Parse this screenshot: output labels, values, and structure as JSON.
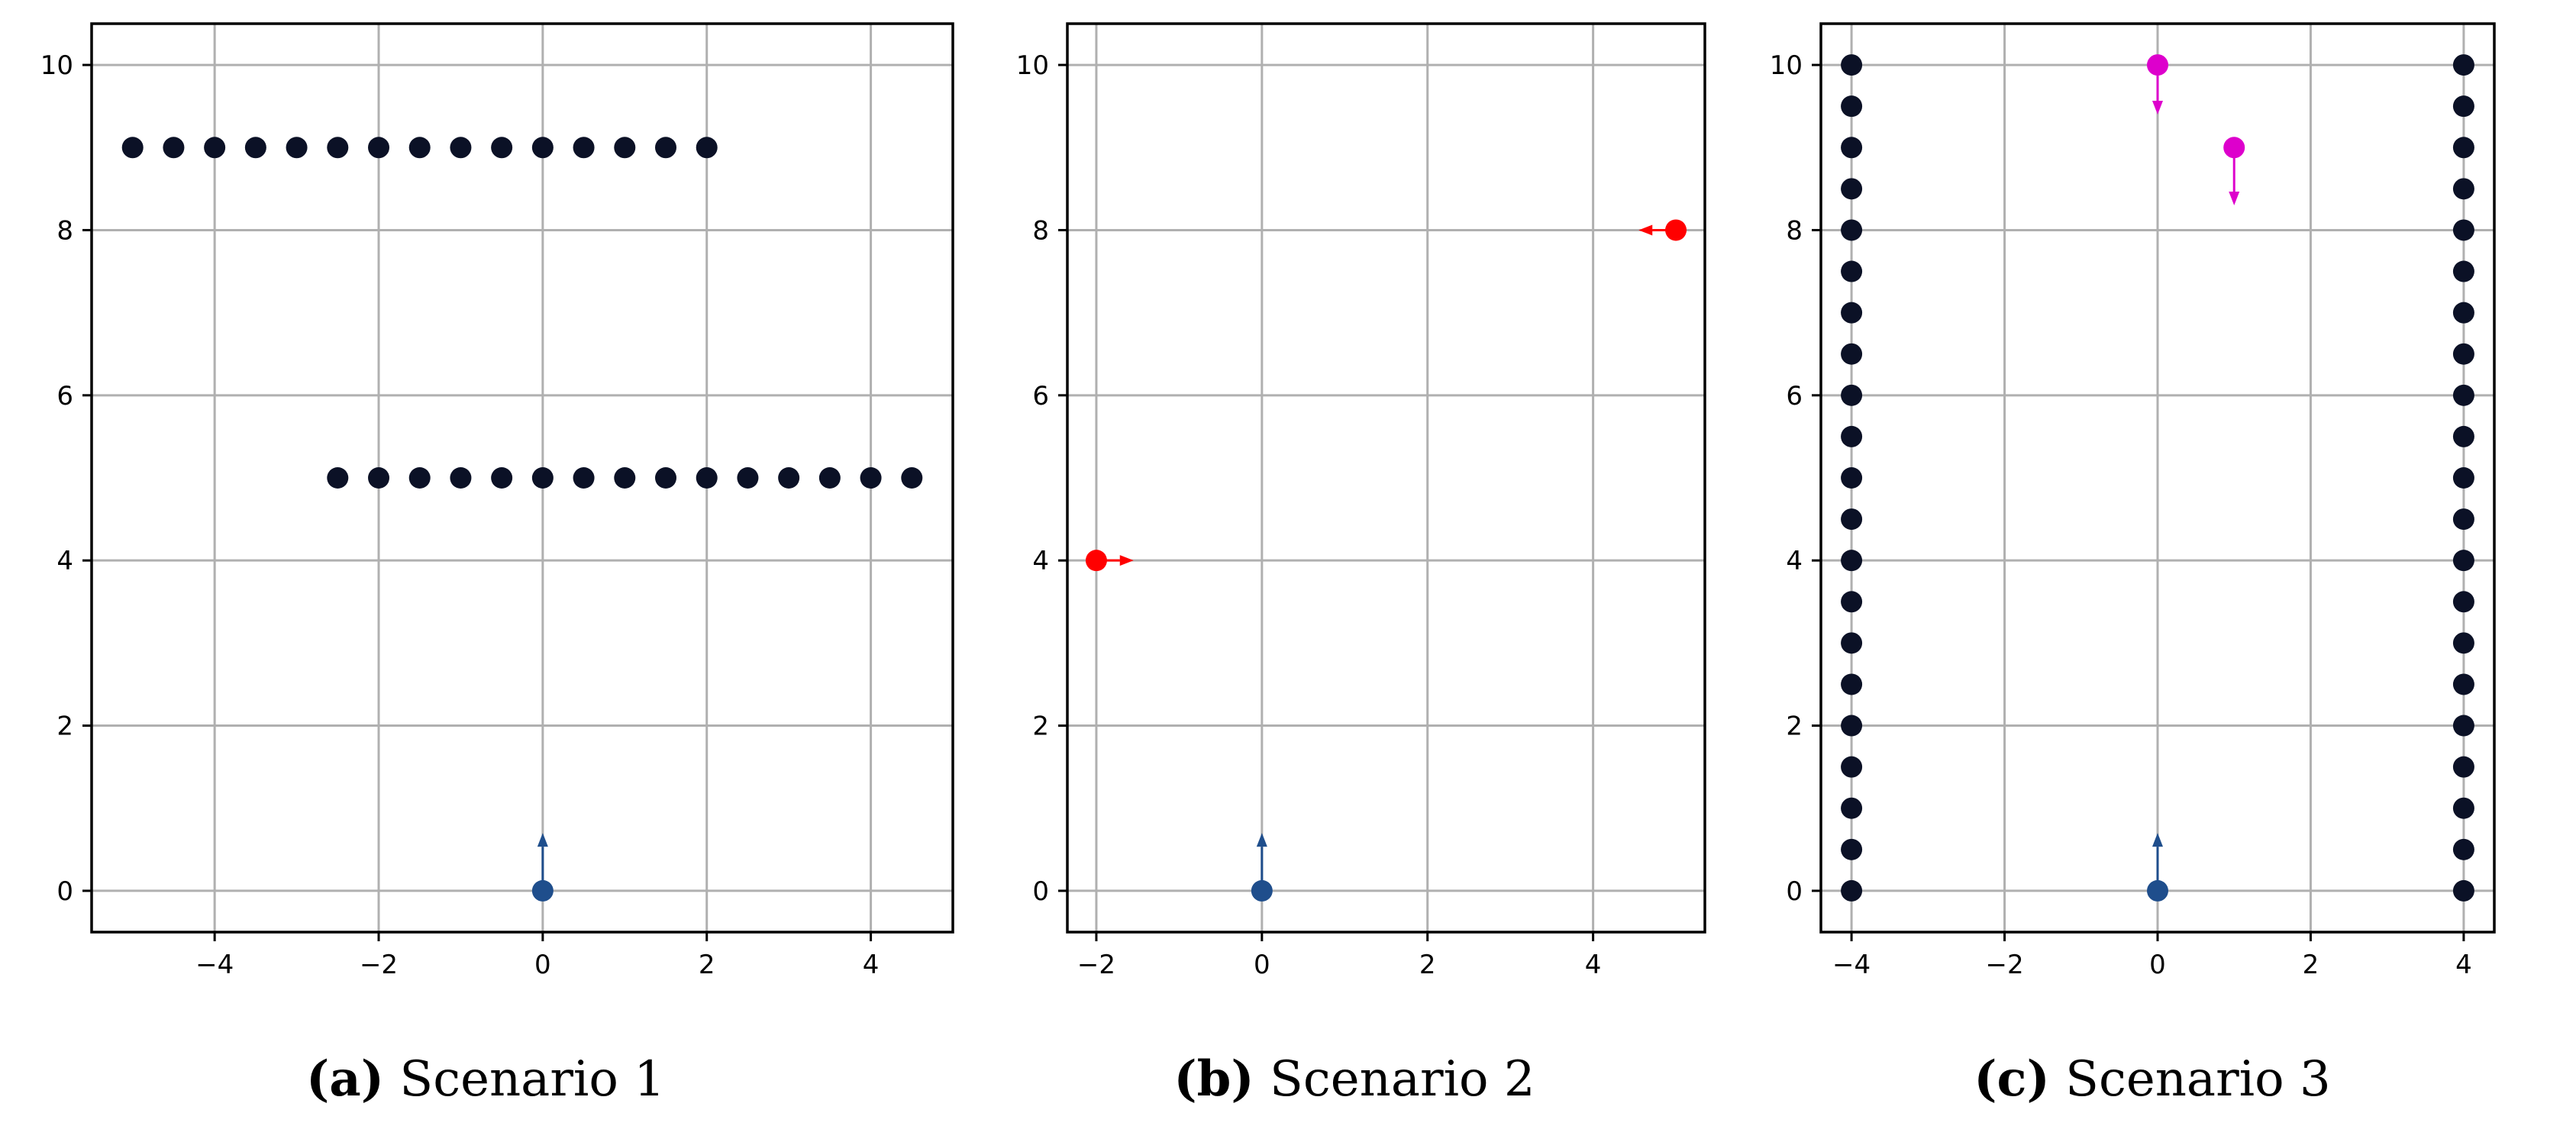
{
  "colors": {
    "obstacle": "#0b1126",
    "robot": "#1f4e8c",
    "red": "#ff0000",
    "magenta": "#dd00cc",
    "grid": "#b0b0b0",
    "axes": "#000000"
  },
  "chart_data": [
    {
      "type": "scatter",
      "caption_label": "(a)",
      "caption_text": " Scenario 1",
      "xlim": [
        -5.5,
        5.0
      ],
      "ylim": [
        -0.5,
        10.5
      ],
      "xticks": [
        -4,
        -2,
        0,
        2,
        4
      ],
      "yticks": [
        0,
        2,
        4,
        6,
        8,
        10
      ],
      "grid": true,
      "series": [
        {
          "role": "obstacles",
          "color": "#0b1126",
          "points": [
            [
              -5,
              9
            ],
            [
              -4.5,
              9
            ],
            [
              -4,
              9
            ],
            [
              -3.5,
              9
            ],
            [
              -3,
              9
            ],
            [
              -2.5,
              9
            ],
            [
              -2,
              9
            ],
            [
              -1.5,
              9
            ],
            [
              -1,
              9
            ],
            [
              -0.5,
              9
            ],
            [
              0,
              9
            ],
            [
              0.5,
              9
            ],
            [
              1,
              9
            ],
            [
              1.5,
              9
            ],
            [
              2,
              9
            ],
            [
              -2.5,
              5
            ],
            [
              -2,
              5
            ],
            [
              -1.5,
              5
            ],
            [
              -1,
              5
            ],
            [
              -0.5,
              5
            ],
            [
              0,
              5
            ],
            [
              0.5,
              5
            ],
            [
              1,
              5
            ],
            [
              1.5,
              5
            ],
            [
              2,
              5
            ],
            [
              2.5,
              5
            ],
            [
              3,
              5
            ],
            [
              3.5,
              5
            ],
            [
              4,
              5
            ],
            [
              4.5,
              5
            ]
          ]
        },
        {
          "role": "robot",
          "color": "#1f4e8c",
          "points": [
            [
              0,
              0
            ]
          ],
          "arrows": [
            [
              0,
              0,
              0,
              0.7
            ]
          ]
        }
      ]
    },
    {
      "type": "scatter",
      "caption_label": "(b)",
      "caption_text": " Scenario 2",
      "xlim": [
        -2.35,
        5.35
      ],
      "ylim": [
        -0.5,
        10.5
      ],
      "xticks": [
        -2,
        0,
        2,
        4
      ],
      "yticks": [
        0,
        2,
        4,
        6,
        8,
        10
      ],
      "grid": true,
      "series": [
        {
          "role": "moving-obstacles",
          "color": "#ff0000",
          "points": [
            [
              -2,
              4
            ],
            [
              5,
              8
            ]
          ],
          "arrows": [
            [
              -2,
              4,
              -1.55,
              4
            ],
            [
              5,
              8,
              4.55,
              8
            ]
          ]
        },
        {
          "role": "robot",
          "color": "#1f4e8c",
          "points": [
            [
              0,
              0
            ]
          ],
          "arrows": [
            [
              0,
              0,
              0,
              0.7
            ]
          ]
        }
      ]
    },
    {
      "type": "scatter",
      "caption_label": "(c)",
      "caption_text": " Scenario 3",
      "xlim": [
        -4.4,
        4.4
      ],
      "ylim": [
        -0.5,
        10.5
      ],
      "xticks": [
        -4,
        -2,
        0,
        2,
        4
      ],
      "yticks": [
        0,
        2,
        4,
        6,
        8,
        10
      ],
      "grid": true,
      "series": [
        {
          "role": "walls",
          "color": "#0b1126",
          "points": [
            [
              -4,
              0
            ],
            [
              -4,
              0.5
            ],
            [
              -4,
              1
            ],
            [
              -4,
              1.5
            ],
            [
              -4,
              2
            ],
            [
              -4,
              2.5
            ],
            [
              -4,
              3
            ],
            [
              -4,
              3.5
            ],
            [
              -4,
              4
            ],
            [
              -4,
              4.5
            ],
            [
              -4,
              5
            ],
            [
              -4,
              5.5
            ],
            [
              -4,
              6
            ],
            [
              -4,
              6.5
            ],
            [
              -4,
              7
            ],
            [
              -4,
              7.5
            ],
            [
              -4,
              8
            ],
            [
              -4,
              8.5
            ],
            [
              -4,
              9
            ],
            [
              -4,
              9.5
            ],
            [
              -4,
              10
            ],
            [
              4,
              0
            ],
            [
              4,
              0.5
            ],
            [
              4,
              1
            ],
            [
              4,
              1.5
            ],
            [
              4,
              2
            ],
            [
              4,
              2.5
            ],
            [
              4,
              3
            ],
            [
              4,
              3.5
            ],
            [
              4,
              4
            ],
            [
              4,
              4.5
            ],
            [
              4,
              5
            ],
            [
              4,
              5.5
            ],
            [
              4,
              6
            ],
            [
              4,
              6.5
            ],
            [
              4,
              7
            ],
            [
              4,
              7.5
            ],
            [
              4,
              8
            ],
            [
              4,
              8.5
            ],
            [
              4,
              9
            ],
            [
              4,
              9.5
            ],
            [
              4,
              10
            ]
          ]
        },
        {
          "role": "moving-obstacles",
          "color": "#dd00cc",
          "points": [
            [
              0,
              10
            ],
            [
              1,
              9
            ]
          ],
          "arrows": [
            [
              0,
              10,
              0,
              9.4
            ],
            [
              1,
              9,
              1,
              8.3
            ]
          ]
        },
        {
          "role": "robot",
          "color": "#1f4e8c",
          "points": [
            [
              0,
              0
            ]
          ],
          "arrows": [
            [
              0,
              0,
              0,
              0.7
            ]
          ]
        }
      ]
    }
  ]
}
